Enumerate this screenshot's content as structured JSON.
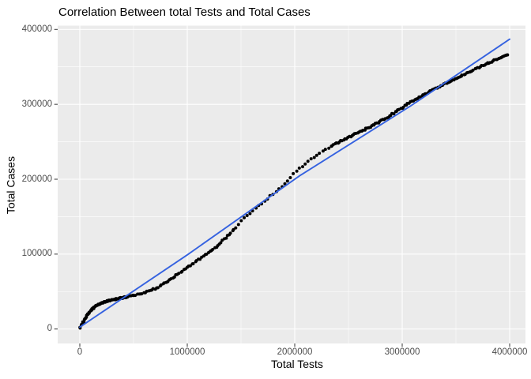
{
  "title": "Correlation Between total Tests and Total Cases",
  "chart_data": {
    "type": "scatter",
    "title": "Correlation Between total Tests and Total Cases",
    "xlabel": "Total Tests",
    "ylabel": "Total Cases",
    "xlim": [
      -200000,
      4150000
    ],
    "ylim": [
      -19000,
      405000
    ],
    "x_ticks": [
      0,
      1000000,
      2000000,
      3000000,
      4000000
    ],
    "y_ticks": [
      0,
      100000,
      200000,
      300000,
      400000
    ],
    "x_tick_labels": [
      "0",
      "1000000",
      "2000000",
      "3000000",
      "4000000"
    ],
    "y_tick_labels": [
      "0",
      "100000",
      "200000",
      "300000",
      "400000"
    ],
    "grid": "white major and minor gridlines on gray panel, minor at midpoints",
    "legend": "none",
    "series": [
      {
        "name": "observations",
        "type": "scatter",
        "color": "#000000",
        "marker_radius_px": 2,
        "n_points_depicted": 300,
        "points": [
          [
            0,
            1500
          ],
          [
            20000,
            7000
          ],
          [
            45000,
            13500
          ],
          [
            75000,
            20000
          ],
          [
            110000,
            26000
          ],
          [
            150000,
            30800
          ],
          [
            195000,
            34200
          ],
          [
            245000,
            36900
          ],
          [
            300000,
            39000
          ],
          [
            360000,
            40700
          ],
          [
            430000,
            42500
          ],
          [
            500000,
            44600
          ],
          [
            570000,
            47200
          ],
          [
            640000,
            50600
          ],
          [
            720000,
            55000
          ],
          [
            780000,
            60000
          ],
          [
            850000,
            67000
          ],
          [
            920000,
            74000
          ],
          [
            985000,
            81000
          ],
          [
            1060000,
            88000
          ],
          [
            1130000,
            95000
          ],
          [
            1200000,
            102000
          ],
          [
            1280000,
            111000
          ],
          [
            1360000,
            122000
          ],
          [
            1440000,
            134000
          ],
          [
            1510000,
            145500
          ],
          [
            1600000,
            156500
          ],
          [
            1700000,
            168500
          ],
          [
            1800000,
            180500
          ],
          [
            1900000,
            192500
          ],
          [
            2000000,
            208500
          ],
          [
            2100000,
            221000
          ],
          [
            2200000,
            231500
          ],
          [
            2300000,
            240500
          ],
          [
            2400000,
            249000
          ],
          [
            2550000,
            259500
          ],
          [
            2700000,
            270000
          ],
          [
            2850000,
            281500
          ],
          [
            3000000,
            295500
          ],
          [
            3100000,
            305000
          ],
          [
            3200000,
            313000
          ],
          [
            3300000,
            320500
          ],
          [
            3450000,
            331000
          ],
          [
            3600000,
            341500
          ],
          [
            3750000,
            352000
          ],
          [
            3870000,
            359500
          ],
          [
            3980000,
            366000
          ]
        ]
      },
      {
        "name": "trend",
        "type": "line",
        "color": "#3562e0",
        "stroke_width_px": 1.9,
        "points": [
          [
            0,
            2500
          ],
          [
            1000000,
            99000
          ],
          [
            2050000,
            205000
          ],
          [
            3080000,
            298000
          ],
          [
            4000000,
            387000
          ]
        ]
      }
    ]
  },
  "colors": {
    "panel_bg": "#ebebeb",
    "grid": "#ffffff",
    "tick_mark": "#333333",
    "tick_text": "#4d4d4d",
    "axis_title_text": "#000000",
    "title_text": "#000000",
    "point": "#000000",
    "trend_line": "#3562e0",
    "figure_bg": "#ffffff"
  }
}
